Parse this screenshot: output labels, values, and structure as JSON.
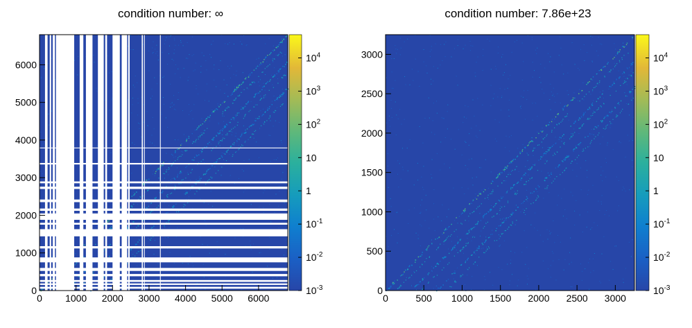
{
  "chart_data": [
    {
      "type": "heatmap",
      "title": "condition number: ∞",
      "xlim": [
        0,
        6800
      ],
      "ylim": [
        0,
        6800
      ],
      "x_ticks": [
        0,
        1000,
        2000,
        3000,
        4000,
        5000,
        6000
      ],
      "y_ticks": [
        0,
        1000,
        2000,
        3000,
        4000,
        5000,
        6000
      ],
      "x_tick_labels": [
        "0",
        "1000",
        "2000",
        "3000",
        "4000",
        "5000",
        "6000"
      ],
      "y_tick_labels": [
        "0",
        "1000",
        "2000",
        "3000",
        "4000",
        "5000",
        "6000"
      ],
      "color_scale": "log",
      "z_range": [
        0.001,
        50000
      ],
      "colorbar_ticks": [
        {
          "value": 0.001,
          "base": "10",
          "exp": "-3"
        },
        {
          "value": 0.01,
          "base": "10",
          "exp": "-2"
        },
        {
          "value": 0.1,
          "base": "10",
          "exp": "-1"
        },
        {
          "value": 1,
          "base": "1",
          "exp": ""
        },
        {
          "value": 10,
          "base": "10",
          "exp": ""
        },
        {
          "value": 100,
          "base": "10",
          "exp": "2"
        },
        {
          "value": 1000,
          "base": "10",
          "exp": "3"
        },
        {
          "value": 10000,
          "base": "10",
          "exp": "4"
        }
      ],
      "background_value": 0.001,
      "empty_columns": [
        [
          150,
          220
        ],
        [
          280,
          320
        ],
        [
          360,
          420
        ],
        [
          450,
          950
        ],
        [
          1100,
          1200
        ],
        [
          1270,
          1450
        ],
        [
          1600,
          1760
        ],
        [
          1800,
          1850
        ],
        [
          2000,
          2200
        ],
        [
          2250,
          2400
        ],
        [
          2430,
          2470
        ],
        [
          2800,
          2830
        ],
        [
          2860,
          2880
        ],
        [
          3300,
          3320
        ]
      ],
      "empty_rows": [
        [
          50,
          100
        ],
        [
          150,
          190
        ],
        [
          230,
          280
        ],
        [
          380,
          440
        ],
        [
          520,
          600
        ],
        [
          750,
          880
        ],
        [
          1120,
          1180
        ],
        [
          1440,
          1630
        ],
        [
          1750,
          1800
        ],
        [
          1880,
          2050
        ],
        [
          2120,
          2180
        ],
        [
          2350,
          2420
        ],
        [
          2700,
          2760
        ],
        [
          2850,
          2900
        ],
        [
          3350,
          3390
        ],
        [
          3780,
          3800
        ]
      ],
      "diagonal_bands": [
        0,
        -700,
        -1400
      ]
    },
    {
      "type": "heatmap",
      "title": "condition number: 7.86e+23",
      "xlim": [
        0,
        3250
      ],
      "ylim": [
        0,
        3250
      ],
      "x_ticks": [
        0,
        500,
        1000,
        1500,
        2000,
        2500,
        3000
      ],
      "y_ticks": [
        0,
        500,
        1000,
        1500,
        2000,
        2500,
        3000
      ],
      "x_tick_labels": [
        "0",
        "500",
        "1000",
        "1500",
        "2000",
        "2500",
        "3000"
      ],
      "y_tick_labels": [
        "0",
        "500",
        "1000",
        "1500",
        "2000",
        "2500",
        "3000"
      ],
      "color_scale": "log",
      "z_range": [
        0.001,
        50000
      ],
      "colorbar_ticks": [
        {
          "value": 0.001,
          "base": "10",
          "exp": "-3"
        },
        {
          "value": 0.01,
          "base": "10",
          "exp": "-2"
        },
        {
          "value": 0.1,
          "base": "10",
          "exp": "-1"
        },
        {
          "value": 1,
          "base": "1",
          "exp": ""
        },
        {
          "value": 10,
          "base": "10",
          "exp": ""
        },
        {
          "value": 100,
          "base": "10",
          "exp": "2"
        },
        {
          "value": 1000,
          "base": "10",
          "exp": "3"
        },
        {
          "value": 10000,
          "base": "10",
          "exp": "4"
        }
      ],
      "background_value": 0.001,
      "empty_columns": [],
      "empty_rows": [],
      "diagonal_bands": [
        0,
        -330,
        -660
      ]
    }
  ]
}
